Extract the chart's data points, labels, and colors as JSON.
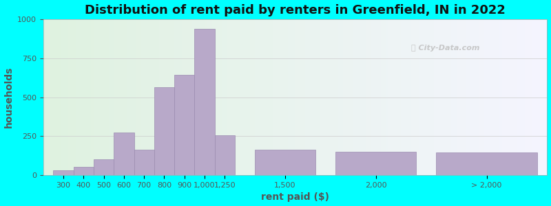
{
  "title": "Distribution of rent paid by renters in Greenfield, IN in 2022",
  "xlabel": "rent paid ($)",
  "ylabel": "households",
  "background_outer": "#00FFFF",
  "bar_color": "#b8a9c9",
  "bar_edge_color": "#9b8bb0",
  "ylim": [
    0,
    1000
  ],
  "yticks": [
    0,
    250,
    500,
    750,
    1000
  ],
  "values": [
    30,
    55,
    100,
    275,
    165,
    565,
    645,
    940,
    255,
    165,
    150,
    145
  ],
  "bar_positions": [
    0,
    1,
    2,
    3,
    4,
    5,
    6,
    7,
    8,
    10,
    14,
    19
  ],
  "bar_widths": [
    1,
    1,
    1,
    1,
    1,
    1,
    1,
    1,
    1,
    3,
    4,
    5
  ],
  "xtick_labels": [
    "300",
    "400",
    "500",
    "600",
    "700",
    "800",
    "900\n1,000",
    "1,250",
    "1,500",
    "2,000",
    "> 2,000"
  ],
  "xtick_bar_indices": [
    0,
    1,
    2,
    3,
    4,
    5,
    6,
    7,
    8,
    9,
    10,
    11
  ],
  "xtick_show": [
    0,
    1,
    2,
    3,
    4,
    5,
    6,
    7,
    8,
    9,
    10,
    11
  ],
  "title_fontsize": 13,
  "axis_label_fontsize": 10,
  "tick_fontsize": 8
}
